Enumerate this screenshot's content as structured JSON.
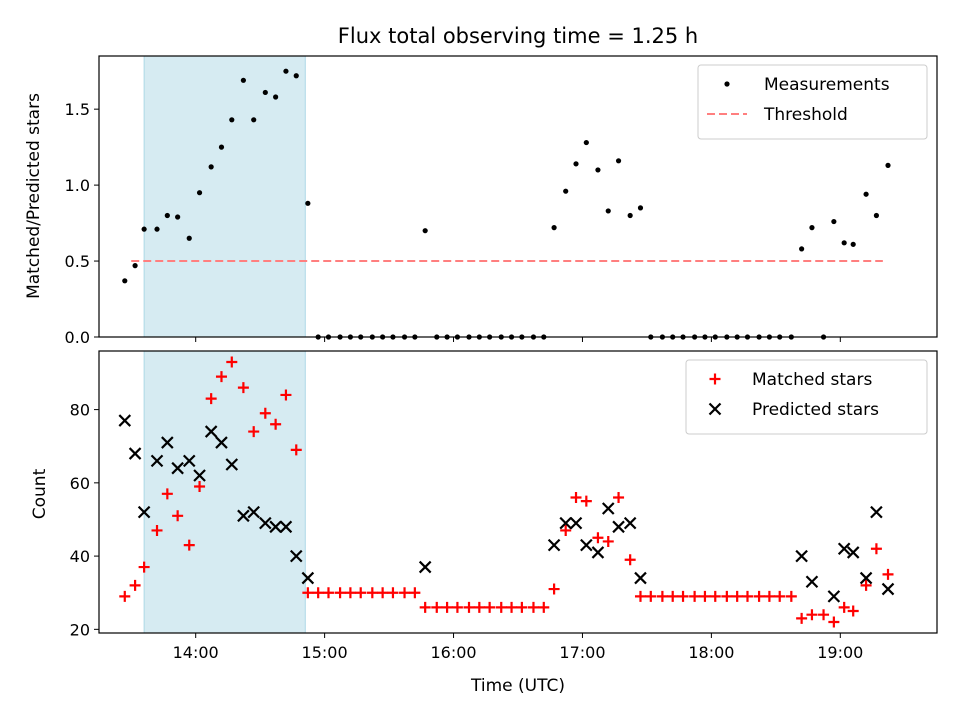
{
  "chart_data": {
    "title": "Flux total observing time = 1.25 h",
    "x_unit": "hours UTC (decimal)",
    "xlim": [
      13.25,
      19.75
    ],
    "x_ticks": [
      {
        "value": 14,
        "label": "14:00"
      },
      {
        "value": 15,
        "label": "15:00"
      },
      {
        "value": 16,
        "label": "16:00"
      },
      {
        "value": 17,
        "label": "17:00"
      },
      {
        "value": 18,
        "label": "18:00"
      },
      {
        "value": 19,
        "label": "19:00"
      }
    ],
    "xlabel": "Time (UTC)",
    "highlight_span": [
      13.6,
      14.85
    ],
    "panels": [
      {
        "type": "scatter",
        "ylabel": "Matched/Predicted stars",
        "ylim": [
          0,
          1.85
        ],
        "y_ticks": [
          0.0,
          0.5,
          1.0,
          1.5
        ],
        "y_tick_labels": [
          "0.0",
          "0.5",
          "1.0",
          "1.5"
        ],
        "legend_position": "top-right",
        "threshold": {
          "name": "Threshold",
          "value": 0.5,
          "x_range": [
            13.5,
            19.33
          ],
          "color": "#ff7f7f"
        },
        "series": [
          {
            "name": "Measurements",
            "marker": "dot",
            "color": "#000000",
            "x": [
              13.45,
              13.53,
              13.6,
              13.7,
              13.78,
              13.86,
              13.95,
              14.03,
              14.12,
              14.2,
              14.28,
              14.37,
              14.45,
              14.54,
              14.62,
              14.7,
              14.78,
              14.87,
              14.95,
              15.03,
              15.12,
              15.2,
              15.28,
              15.37,
              15.45,
              15.53,
              15.62,
              15.7,
              15.78,
              15.87,
              15.95,
              16.03,
              16.12,
              16.2,
              16.28,
              16.37,
              16.45,
              16.53,
              16.62,
              16.7,
              16.78,
              16.87,
              16.95,
              17.03,
              17.12,
              17.2,
              17.28,
              17.37,
              17.45,
              17.53,
              17.62,
              17.7,
              17.78,
              17.87,
              17.95,
              18.03,
              18.12,
              18.2,
              18.28,
              18.37,
              18.45,
              18.53,
              18.62,
              18.7,
              18.78,
              18.87,
              18.95,
              19.03,
              19.1,
              19.2,
              19.28,
              19.37
            ],
            "y": [
              0.37,
              0.47,
              0.71,
              0.71,
              0.8,
              0.79,
              0.65,
              0.95,
              1.12,
              1.25,
              1.43,
              1.69,
              1.43,
              1.61,
              1.58,
              1.75,
              1.72,
              0.88,
              0.0,
              0.0,
              0.0,
              0.0,
              0.0,
              0.0,
              0.0,
              0.0,
              0.0,
              0.0,
              0.7,
              0.0,
              0.0,
              0.0,
              0.0,
              0.0,
              0.0,
              0.0,
              0.0,
              0.0,
              0.0,
              0.0,
              0.72,
              0.96,
              1.14,
              1.28,
              1.1,
              0.83,
              1.16,
              0.8,
              0.85,
              0.0,
              0.0,
              0.0,
              0.0,
              0.0,
              0.0,
              0.0,
              0.0,
              0.0,
              0.0,
              0.0,
              0.0,
              0.0,
              0.0,
              0.58,
              0.72,
              0.0,
              0.76,
              0.62,
              0.61,
              0.94,
              0.8,
              1.13
            ]
          }
        ]
      },
      {
        "type": "scatter",
        "ylabel": "Count",
        "ylim": [
          19,
          96
        ],
        "y_ticks": [
          20,
          40,
          60,
          80
        ],
        "y_tick_labels": [
          "20",
          "40",
          "60",
          "80"
        ],
        "legend_position": "top-right",
        "series": [
          {
            "name": "Matched stars",
            "marker": "plus",
            "color": "#ff0000",
            "x": [
              13.45,
              13.53,
              13.6,
              13.7,
              13.78,
              13.86,
              13.95,
              14.03,
              14.12,
              14.2,
              14.28,
              14.37,
              14.45,
              14.54,
              14.62,
              14.7,
              14.78,
              14.87,
              14.95,
              15.03,
              15.12,
              15.2,
              15.28,
              15.37,
              15.45,
              15.53,
              15.62,
              15.7,
              15.78,
              15.87,
              15.95,
              16.03,
              16.12,
              16.2,
              16.28,
              16.37,
              16.45,
              16.53,
              16.62,
              16.7,
              16.78,
              16.87,
              16.95,
              17.03,
              17.12,
              17.2,
              17.28,
              17.37,
              17.45,
              17.53,
              17.62,
              17.7,
              17.78,
              17.87,
              17.95,
              18.03,
              18.12,
              18.2,
              18.28,
              18.37,
              18.45,
              18.53,
              18.62,
              18.7,
              18.78,
              18.87,
              18.95,
              19.03,
              19.1,
              19.2,
              19.28,
              19.37
            ],
            "y": [
              29,
              32,
              37,
              47,
              57,
              51,
              43,
              59,
              83,
              89,
              93,
              86,
              74,
              79,
              76,
              84,
              69,
              30,
              30,
              30,
              30,
              30,
              30,
              30,
              30,
              30,
              30,
              30,
              26,
              26,
              26,
              26,
              26,
              26,
              26,
              26,
              26,
              26,
              26,
              26,
              31,
              47,
              56,
              55,
              45,
              44,
              56,
              39,
              29,
              29,
              29,
              29,
              29,
              29,
              29,
              29,
              29,
              29,
              29,
              29,
              29,
              29,
              29,
              23,
              24,
              24,
              22,
              26,
              25,
              32,
              42,
              35
            ]
          },
          {
            "name": "Predicted stars",
            "marker": "x",
            "color": "#000000",
            "x": [
              13.45,
              13.53,
              13.6,
              13.7,
              13.78,
              13.86,
              13.95,
              14.03,
              14.12,
              14.2,
              14.28,
              14.37,
              14.45,
              14.54,
              14.62,
              14.7,
              14.78,
              14.87,
              15.78,
              16.78,
              16.87,
              16.95,
              17.03,
              17.12,
              17.2,
              17.28,
              17.37,
              17.45,
              18.7,
              18.78,
              18.95,
              19.03,
              19.1,
              19.2,
              19.28,
              19.37
            ],
            "y": [
              77,
              68,
              52,
              66,
              71,
              64,
              66,
              62,
              74,
              71,
              65,
              51,
              52,
              49,
              48,
              48,
              40,
              34,
              37,
              43,
              49,
              49,
              43,
              41,
              53,
              48,
              49,
              34,
              40,
              33,
              29,
              42,
              41,
              34,
              52,
              31
            ]
          }
        ]
      }
    ]
  }
}
